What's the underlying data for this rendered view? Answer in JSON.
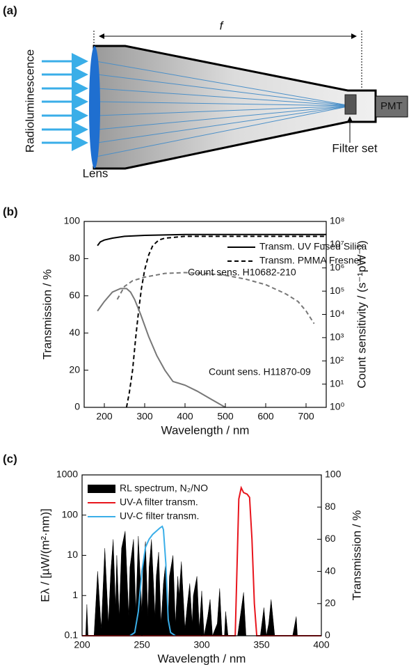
{
  "diagram": {
    "label": "(a)",
    "focal_length": "f",
    "source": "Radioluminescence",
    "lens": "Lens",
    "filter": "Filter set",
    "detector": "PMT"
  },
  "chart_data": [
    {
      "type": "line",
      "label": "(b)",
      "xlabel": "Wavelength / nm",
      "ylabel": "Transmission / %",
      "y2label": "Count sensitivity / (s⁻¹pW⁻¹)",
      "xlim": [
        150,
        750
      ],
      "xticks": [
        200,
        300,
        400,
        500,
        600,
        700
      ],
      "ylim": [
        0,
        100
      ],
      "yticks": [
        0,
        20,
        40,
        60,
        80,
        100
      ],
      "y2lim": [
        1,
        100000000
      ],
      "y2log": true,
      "y2ticks": [
        {
          "value": 1,
          "label": "10⁰"
        },
        {
          "value": 10,
          "label": "10¹"
        },
        {
          "value": 100,
          "label": "10²"
        },
        {
          "value": 1000,
          "label": "10³"
        },
        {
          "value": 10000,
          "label": "10⁴"
        },
        {
          "value": 100000,
          "label": "10⁵"
        },
        {
          "value": 1000000,
          "label": "10⁶"
        },
        {
          "value": 10000000,
          "label": "10⁷"
        },
        {
          "value": 100000000,
          "label": "10⁸"
        }
      ],
      "legend": "upper right",
      "series": [
        {
          "name": "Transm. UV Fused Silica",
          "color": "#000000",
          "dash": "solid",
          "x": [
            183,
            190,
            200,
            220,
            250,
            300,
            400,
            500,
            600,
            700,
            750
          ],
          "values": [
            87,
            89,
            90,
            91,
            92,
            92.5,
            93,
            93,
            93,
            93,
            93
          ]
        },
        {
          "name": "Transm. PMMA Fresnel",
          "color": "#000000",
          "dash": "dashed",
          "x": [
            255,
            262,
            270,
            278,
            285,
            292,
            300,
            310,
            320,
            335,
            350,
            400,
            500,
            600,
            700,
            750
          ],
          "values": [
            0,
            8,
            20,
            38,
            52,
            64,
            74,
            82,
            87,
            90,
            91,
            92,
            92,
            92,
            92,
            92
          ]
        },
        {
          "name": "Count sens. H10682-210",
          "color": "#777777",
          "dash": "dashed",
          "axis": "y2",
          "x": [
            232,
            250,
            270,
            300,
            350,
            400,
            450,
            500,
            550,
            600,
            650,
            680,
            700,
            720
          ],
          "values": [
            44000,
            160000,
            280000,
            400000,
            580000,
            630000,
            580000,
            480000,
            330000,
            190000,
            76000,
            36000,
            14000,
            4000
          ]
        },
        {
          "name": "Count sens. H11870-09",
          "color": "#777777",
          "dash": "solid",
          "axis": "y2",
          "x": [
            183,
            200,
            220,
            240,
            255,
            265,
            275,
            290,
            310,
            330,
            350,
            370,
            400,
            430,
            460,
            500
          ],
          "values": [
            14000,
            36000,
            91000,
            130000,
            130000,
            91000,
            44000,
            10000,
            1100,
            170,
            40,
            13,
            9,
            5,
            2.5,
            1
          ]
        }
      ]
    },
    {
      "type": "line",
      "label": "(c)",
      "xlabel": "Wavelength / nm",
      "ylabel": "Eλ / [µW/(m²·nm)]",
      "y2label": "Transmission / %",
      "xlim": [
        200,
        400
      ],
      "xticks": [
        200,
        250,
        300,
        350,
        400
      ],
      "ylim": [
        0.1,
        1000
      ],
      "ylog": true,
      "yticks": [
        0.1,
        1,
        10,
        100,
        1000
      ],
      "y2lim": [
        0,
        100
      ],
      "y2ticks": [
        0,
        20,
        40,
        60,
        80,
        100
      ],
      "legend": "upper left",
      "series": [
        {
          "name": "RL spectrum, N₂/NO",
          "color": "#000000",
          "fill": true,
          "x": [
            200,
            203,
            204,
            205,
            210,
            213,
            216,
            219,
            222,
            224,
            226,
            228,
            229,
            231,
            233,
            236,
            239,
            240,
            243,
            245,
            247,
            250,
            251,
            253,
            255,
            256,
            258,
            261,
            262,
            264,
            266,
            268,
            270,
            272,
            273,
            276,
            278,
            280,
            281,
            283,
            286,
            288,
            290,
            292,
            293,
            296,
            298,
            300,
            302,
            305,
            307,
            309,
            313,
            315,
            317,
            319,
            320,
            322,
            330,
            335,
            337,
            349,
            352,
            354,
            356,
            358,
            361,
            376,
            379,
            380,
            400
          ],
          "values": [
            0.1,
            0.1,
            0.6,
            0.1,
            0.1,
            4,
            0.15,
            15,
            0.2,
            4,
            25,
            0.5,
            10,
            0.3,
            15,
            40,
            0.3,
            5,
            25,
            0.4,
            30,
            0.4,
            5,
            22,
            0.3,
            5,
            25,
            0.3,
            3,
            12,
            0.2,
            2,
            7,
            0.2,
            3,
            10,
            0.2,
            3,
            1,
            7,
            0.15,
            0.6,
            2,
            0.2,
            1,
            3,
            0.15,
            1.3,
            0.1,
            0.3,
            0.8,
            0.1,
            0.2,
            1.5,
            0.1,
            0.1,
            0.4,
            0.1,
            0.1,
            1.2,
            0.1,
            0.1,
            0.5,
            0.1,
            0.2,
            0.8,
            0.1,
            0.1,
            0.3,
            0.1,
            0.1
          ]
        },
        {
          "name": "UV-A filter transm.",
          "color": "#e8141c",
          "axis": "y2",
          "x": [
            200,
            325,
            328,
            331,
            333,
            335,
            338,
            340,
            342,
            344,
            346,
            400
          ],
          "values": [
            0,
            0,
            0,
            85,
            92,
            89,
            88,
            86,
            60,
            20,
            0,
            0
          ]
        },
        {
          "name": "UV-C filter transm.",
          "color": "#3aaee8",
          "axis": "y2",
          "x": [
            240,
            244,
            247,
            250,
            253,
            256,
            259,
            262,
            265,
            267,
            268,
            270,
            272,
            274,
            278
          ],
          "values": [
            0,
            2,
            15,
            40,
            55,
            60,
            63,
            65,
            67,
            68,
            66,
            45,
            10,
            2,
            0
          ]
        }
      ]
    }
  ]
}
